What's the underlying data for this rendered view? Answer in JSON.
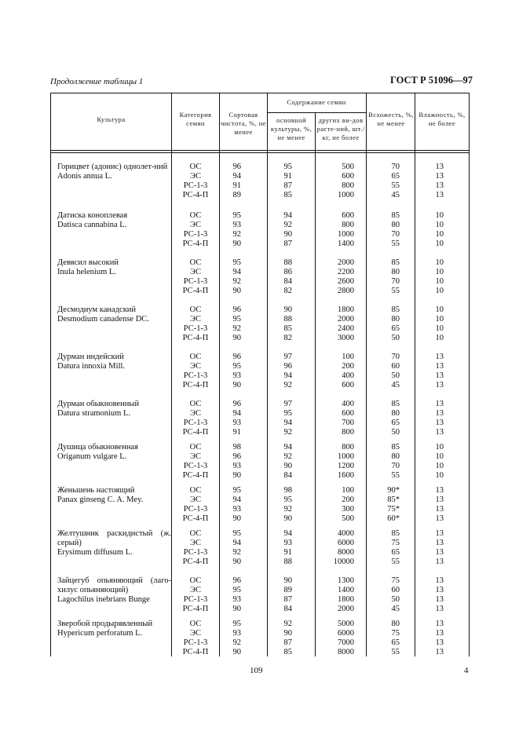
{
  "header": {
    "standard": "ГОСТ Р 51096—97",
    "continuation": "Продолжение таблицы 1"
  },
  "table": {
    "columns": {
      "culture": "Культура",
      "category": "Категория семян",
      "purity": "Сортовая чистота, %, не менее",
      "seed_content": "Содержание семян",
      "main_crop": "основной культуры, %, не менее",
      "other_species": "других ви-дов расте-ний, шт./кг, не более",
      "germination": "Всхожесть, %, не менее",
      "moisture": "Влажность, %, не более"
    },
    "categories": [
      "ОС",
      "ЭС",
      "РС-1-3",
      "РС-4-П"
    ],
    "groups": [
      {
        "name": "Горицвет (адонис) однолет-ний",
        "latin": "Adonis annua L.",
        "rows": [
          [
            "96",
            "95",
            "500",
            "70",
            "13"
          ],
          [
            "94",
            "91",
            "600",
            "65",
            "13"
          ],
          [
            "91",
            "87",
            "800",
            "55",
            "13"
          ],
          [
            "89",
            "85",
            "1000",
            "45",
            "13"
          ]
        ]
      },
      {
        "name": "Датиска коноплевая",
        "latin": "Datisca cannabina L.",
        "rows": [
          [
            "95",
            "94",
            "600",
            "85",
            "10"
          ],
          [
            "93",
            "92",
            "800",
            "80",
            "10"
          ],
          [
            "92",
            "90",
            "1000",
            "70",
            "10"
          ],
          [
            "90",
            "87",
            "1400",
            "55",
            "10"
          ]
        ]
      },
      {
        "name": "Девясил высокий",
        "latin": "Inula helenium L.",
        "rows": [
          [
            "95",
            "88",
            "2000",
            "85",
            "10"
          ],
          [
            "94",
            "86",
            "2200",
            "80",
            "10"
          ],
          [
            "92",
            "84",
            "2600",
            "70",
            "10"
          ],
          [
            "90",
            "82",
            "2800",
            "55",
            "10"
          ]
        ]
      },
      {
        "name": "Десмодиум канадский",
        "latin": "Desmodium canadense DC.",
        "rows": [
          [
            "96",
            "90",
            "1800",
            "85",
            "10"
          ],
          [
            "95",
            "88",
            "2000",
            "80",
            "10"
          ],
          [
            "92",
            "85",
            "2400",
            "65",
            "10"
          ],
          [
            "90",
            "82",
            "3000",
            "50",
            "10"
          ]
        ]
      },
      {
        "name": "Дурман индейский",
        "latin": "Datura innoxia Mill.",
        "rows": [
          [
            "96",
            "97",
            "100",
            "70",
            "13"
          ],
          [
            "95",
            "96",
            "200",
            "60",
            "13"
          ],
          [
            "93",
            "94",
            "400",
            "50",
            "13"
          ],
          [
            "90",
            "92",
            "600",
            "45",
            "13"
          ]
        ]
      },
      {
        "name": "Дурман обыкновенный",
        "latin": "Datura stramonium L.",
        "rows": [
          [
            "96",
            "97",
            "400",
            "85",
            "13"
          ],
          [
            "94",
            "95",
            "600",
            "80",
            "13"
          ],
          [
            "93",
            "94",
            "700",
            "65",
            "13"
          ],
          [
            "91",
            "92",
            "800",
            "50",
            "13"
          ]
        ]
      },
      {
        "name": "Душица обыкновенная",
        "latin": "Origanum vulgare L.",
        "rows": [
          [
            "98",
            "94",
            "800",
            "85",
            "10"
          ],
          [
            "96",
            "92",
            "1000",
            "80",
            "10"
          ],
          [
            "93",
            "90",
            "1200",
            "70",
            "10"
          ],
          [
            "90",
            "84",
            "1600",
            "55",
            "10"
          ]
        ]
      },
      {
        "name": "Женьшень настоящий",
        "latin": "Panax ginseng C. A. Mey.",
        "rows": [
          [
            "95",
            "98",
            "100",
            "90*",
            "13"
          ],
          [
            "94",
            "95",
            "200",
            "85*",
            "13"
          ],
          [
            "93",
            "92",
            "300",
            "75*",
            "13"
          ],
          [
            "90",
            "90",
            "500",
            "60*",
            "13"
          ]
        ]
      },
      {
        "name": "Желтушник раскидистый (ж. серый)",
        "latin": "Erysimum diffusum L.",
        "rows": [
          [
            "95",
            "94",
            "4000",
            "85",
            "13"
          ],
          [
            "94",
            "93",
            "6000",
            "75",
            "13"
          ],
          [
            "92",
            "91",
            "8000",
            "65",
            "13"
          ],
          [
            "90",
            "88",
            "10000",
            "55",
            "13"
          ]
        ]
      },
      {
        "name": "Зайцегуб опьяняющий (лаго-хилус опьяняющий)",
        "latin": "Lagochilus inebrians Bunge",
        "rows": [
          [
            "96",
            "90",
            "1300",
            "75",
            "13"
          ],
          [
            "95",
            "89",
            "1400",
            "60",
            "13"
          ],
          [
            "93",
            "87",
            "1800",
            "50",
            "13"
          ],
          [
            "90",
            "84",
            "2000",
            "45",
            "13"
          ]
        ]
      },
      {
        "name": "Зверобой продырявленный",
        "latin": "Hypericum perforatum L.",
        "rows": [
          [
            "95",
            "92",
            "5000",
            "80",
            "13"
          ],
          [
            "93",
            "90",
            "6000",
            "75",
            "13"
          ],
          [
            "92",
            "87",
            "7000",
            "65",
            "13"
          ],
          [
            "90",
            "85",
            "8000",
            "55",
            "13"
          ]
        ]
      }
    ]
  },
  "footer": {
    "page_number": "109",
    "sheet": "4"
  }
}
